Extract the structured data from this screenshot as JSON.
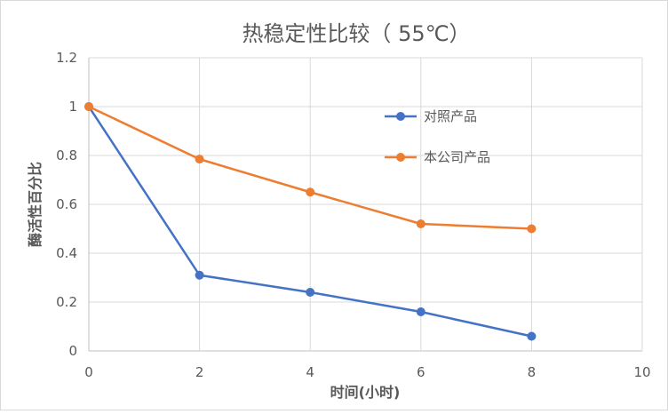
{
  "chart_data": {
    "type": "scatter",
    "title": "热稳定性比较（ 55℃）",
    "xlabel": "时间(小时)",
    "ylabel": "酶活性百分比",
    "xlim": [
      0,
      10
    ],
    "ylim": [
      0,
      1.2
    ],
    "xticks": [
      0,
      2,
      4,
      6,
      8,
      10
    ],
    "yticks": [
      0,
      0.2,
      0.4,
      0.6,
      0.8,
      1,
      1.2
    ],
    "grid": true,
    "legend_position": "upper-right-inside",
    "series": [
      {
        "name": "对照产品",
        "color": "#4472C4",
        "x": [
          0,
          2,
          4,
          6,
          8
        ],
        "y": [
          1.0,
          0.31,
          0.24,
          0.16,
          0.06
        ]
      },
      {
        "name": "本公司产品",
        "color": "#ED7D31",
        "x": [
          0,
          2,
          4,
          6,
          8
        ],
        "y": [
          1.0,
          0.785,
          0.65,
          0.52,
          0.5
        ]
      }
    ]
  }
}
